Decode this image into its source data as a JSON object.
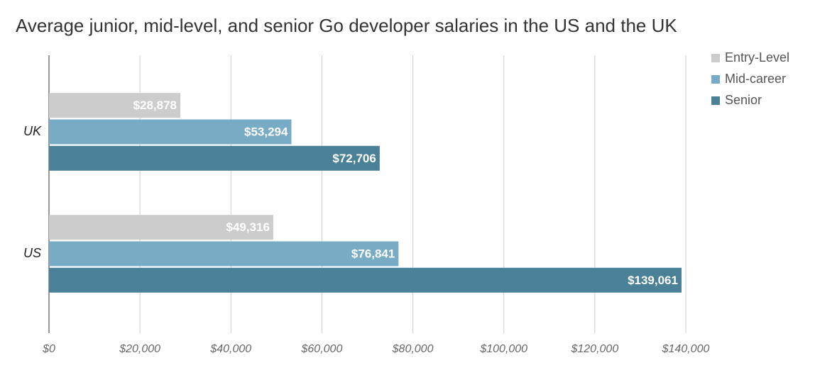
{
  "chart_data": {
    "type": "hbar",
    "title": "Average junior, mid-level, and senior Go developer salaries in the US and the UK",
    "categories": [
      "UK",
      "US"
    ],
    "series": [
      {
        "name": "Entry-Level",
        "color": "#cccccc",
        "values": [
          28878,
          49316
        ],
        "value_labels": [
          "$28,878",
          "$49,316"
        ]
      },
      {
        "name": "Mid-career",
        "color": "#78abc4",
        "values": [
          53294,
          76841
        ],
        "value_labels": [
          "$53,294",
          "$76,841"
        ]
      },
      {
        "name": "Senior",
        "color": "#4a8196",
        "values": [
          72706,
          139061
        ],
        "value_labels": [
          "$72,706",
          "$139,061"
        ]
      }
    ],
    "xlim": [
      0,
      140000
    ],
    "xticks": [
      {
        "value": 0,
        "label": "$0"
      },
      {
        "value": 20000,
        "label": "$20,000"
      },
      {
        "value": 40000,
        "label": "$40,000"
      },
      {
        "value": 60000,
        "label": "$60,000"
      },
      {
        "value": 80000,
        "label": "$80,000"
      },
      {
        "value": 100000,
        "label": "$100,000"
      },
      {
        "value": 120000,
        "label": "$120,000"
      },
      {
        "value": 140000,
        "label": "$140,000"
      }
    ],
    "grid": true,
    "legend": "top-right"
  }
}
